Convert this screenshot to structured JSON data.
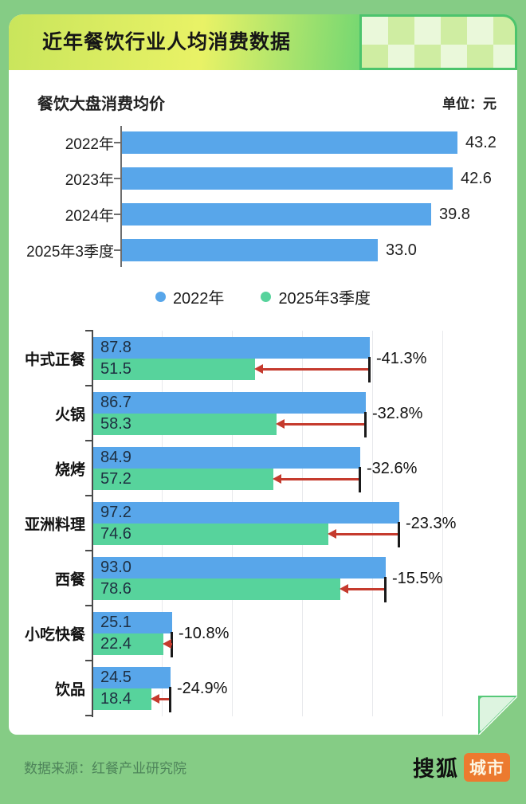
{
  "page": {
    "header_title": "近年餐饮行业人均消费数据",
    "footer_source": "数据来源：红餐产业研究院",
    "logo_1": "搜狐",
    "logo_2": "城市"
  },
  "colors": {
    "page_bg": "#85cc85",
    "bar_blue": "#58a6ea",
    "bar_green": "#57d39c",
    "arrow_red": "#c53a2d",
    "badge_orange": "#ec7a2f"
  },
  "chart_data": [
    {
      "type": "bar",
      "orientation": "horizontal",
      "title": "餐饮大盘消费均价",
      "unit_label": "单位：元",
      "categories": [
        "2022年",
        "2023年",
        "2024年",
        "2025年3季度"
      ],
      "values": [
        43.2,
        42.6,
        39.8,
        33.0
      ],
      "xlim": [
        0,
        45
      ],
      "grid": false,
      "bar_color": "#58a6ea"
    },
    {
      "type": "bar",
      "orientation": "horizontal",
      "categories": [
        "中式正餐",
        "火锅",
        "烧烤",
        "亚洲料理",
        "西餐",
        "小吃快餐",
        "饮品"
      ],
      "series": [
        {
          "name": "2022年",
          "color": "#58a6ea",
          "values": [
            87.8,
            86.7,
            84.9,
            97.2,
            93.0,
            25.1,
            24.5
          ]
        },
        {
          "name": "2025年3季度",
          "color": "#57d39c",
          "values": [
            51.5,
            58.3,
            57.2,
            74.6,
            78.6,
            22.4,
            18.4
          ]
        }
      ],
      "change_labels": [
        "-41.3%",
        "-32.8%",
        "-32.6%",
        "-23.3%",
        "-15.5%",
        "-10.8%",
        "-24.9%"
      ],
      "xlim": [
        0,
        110
      ],
      "grid": true,
      "legend_position": "top"
    }
  ]
}
